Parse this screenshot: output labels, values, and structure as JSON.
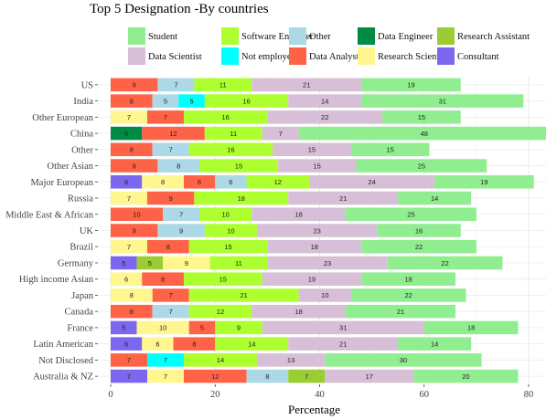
{
  "chart_data": {
    "type": "bar",
    "orientation": "horizontal",
    "stacked": true,
    "title": "Top 5 Designation -By countries",
    "xlabel": "Percentage",
    "ylabel": "",
    "xlim": [
      0,
      83
    ],
    "xticks": [
      0,
      20,
      40,
      60,
      80
    ],
    "grid": true,
    "legend_position": "top",
    "legend": [
      {
        "name": "Student",
        "color": "#90EE90"
      },
      {
        "name": "Software Engineer",
        "color": "#ADFF2F"
      },
      {
        "name": "Other",
        "color": "#ADD8E6"
      },
      {
        "name": "Data Engineer",
        "color": "#008B45"
      },
      {
        "name": "Research Assistant",
        "color": "#9ACD32"
      },
      {
        "name": "Data Scientist",
        "color": "#D8BFD8"
      },
      {
        "name": "Not employed",
        "color": "#00FFFF"
      },
      {
        "name": "Data Analyst",
        "color": "#FF6347"
      },
      {
        "name": "Research Scientist",
        "color": "#FFF68F"
      },
      {
        "name": "Consultant",
        "color": "#7B68EE"
      }
    ],
    "categories": [
      "US",
      "India",
      "Other European",
      "China",
      "Other",
      "Other Asian",
      "Major European",
      "Russia",
      "Middle East & African",
      "UK",
      "Brazil",
      "Germany",
      "High income Asian",
      "Japan",
      "Canada",
      "France",
      "Latin American",
      "Not Disclosed",
      "Australia & NZ"
    ],
    "bars": [
      {
        "segments": [
          {
            "s": "Data Analyst",
            "v": 9
          },
          {
            "s": "Other",
            "v": 7
          },
          {
            "s": "Software Engineer",
            "v": 11
          },
          {
            "s": "Data Scientist",
            "v": 21
          },
          {
            "s": "Student",
            "v": 19
          }
        ]
      },
      {
        "segments": [
          {
            "s": "Data Analyst",
            "v": 8
          },
          {
            "s": "Other",
            "v": 5
          },
          {
            "s": "Not employed",
            "v": 5
          },
          {
            "s": "Software Engineer",
            "v": 16
          },
          {
            "s": "Data Scientist",
            "v": 14
          },
          {
            "s": "Student",
            "v": 31
          }
        ]
      },
      {
        "segments": [
          {
            "s": "Research Scientist",
            "v": 7
          },
          {
            "s": "Data Analyst",
            "v": 7
          },
          {
            "s": "Software Engineer",
            "v": 16
          },
          {
            "s": "Data Scientist",
            "v": 22
          },
          {
            "s": "Student",
            "v": 15
          }
        ]
      },
      {
        "segments": [
          {
            "s": "Data Engineer",
            "v": 6
          },
          {
            "s": "Data Analyst",
            "v": 12
          },
          {
            "s": "Software Engineer",
            "v": 11
          },
          {
            "s": "Data Scientist",
            "v": 7
          },
          {
            "s": "Student",
            "v": 48
          }
        ]
      },
      {
        "segments": [
          {
            "s": "Data Analyst",
            "v": 8
          },
          {
            "s": "Other",
            "v": 7
          },
          {
            "s": "Software Engineer",
            "v": 16
          },
          {
            "s": "Data Scientist",
            "v": 15
          },
          {
            "s": "Student",
            "v": 15
          }
        ]
      },
      {
        "segments": [
          {
            "s": "Data Analyst",
            "v": 9
          },
          {
            "s": "Other",
            "v": 8
          },
          {
            "s": "Software Engineer",
            "v": 15
          },
          {
            "s": "Data Scientist",
            "v": 15
          },
          {
            "s": "Student",
            "v": 25
          }
        ]
      },
      {
        "segments": [
          {
            "s": "Consultant",
            "v": 6
          },
          {
            "s": "Research Scientist",
            "v": 8
          },
          {
            "s": "Data Analyst",
            "v": 6
          },
          {
            "s": "Other",
            "v": 6
          },
          {
            "s": "Software Engineer",
            "v": 12
          },
          {
            "s": "Data Scientist",
            "v": 24
          },
          {
            "s": "Student",
            "v": 19
          }
        ]
      },
      {
        "segments": [
          {
            "s": "Research Scientist",
            "v": 7
          },
          {
            "s": "Data Analyst",
            "v": 9
          },
          {
            "s": "Software Engineer",
            "v": 18
          },
          {
            "s": "Data Scientist",
            "v": 21
          },
          {
            "s": "Student",
            "v": 14
          }
        ]
      },
      {
        "segments": [
          {
            "s": "Data Analyst",
            "v": 10
          },
          {
            "s": "Other",
            "v": 7
          },
          {
            "s": "Software Engineer",
            "v": 10
          },
          {
            "s": "Data Scientist",
            "v": 18
          },
          {
            "s": "Student",
            "v": 25
          }
        ]
      },
      {
        "segments": [
          {
            "s": "Data Analyst",
            "v": 9
          },
          {
            "s": "Other",
            "v": 9
          },
          {
            "s": "Software Engineer",
            "v": 10
          },
          {
            "s": "Data Scientist",
            "v": 23
          },
          {
            "s": "Student",
            "v": 16
          }
        ]
      },
      {
        "segments": [
          {
            "s": "Research Scientist",
            "v": 7
          },
          {
            "s": "Data Analyst",
            "v": 8
          },
          {
            "s": "Software Engineer",
            "v": 15
          },
          {
            "s": "Data Scientist",
            "v": 18
          },
          {
            "s": "Student",
            "v": 22
          }
        ]
      },
      {
        "segments": [
          {
            "s": "Consultant",
            "v": 5
          },
          {
            "s": "Research Assistant",
            "v": 5
          },
          {
            "s": "Research Scientist",
            "v": 9
          },
          {
            "s": "Software Engineer",
            "v": 11
          },
          {
            "s": "Data Scientist",
            "v": 23
          },
          {
            "s": "Student",
            "v": 22
          }
        ]
      },
      {
        "segments": [
          {
            "s": "Research Scientist",
            "v": 6
          },
          {
            "s": "Data Analyst",
            "v": 8
          },
          {
            "s": "Software Engineer",
            "v": 15
          },
          {
            "s": "Data Scientist",
            "v": 19
          },
          {
            "s": "Student",
            "v": 18
          }
        ]
      },
      {
        "segments": [
          {
            "s": "Research Scientist",
            "v": 8
          },
          {
            "s": "Data Analyst",
            "v": 7
          },
          {
            "s": "Software Engineer",
            "v": 21
          },
          {
            "s": "Data Scientist",
            "v": 10
          },
          {
            "s": "Student",
            "v": 22
          }
        ]
      },
      {
        "segments": [
          {
            "s": "Data Analyst",
            "v": 8
          },
          {
            "s": "Other",
            "v": 7
          },
          {
            "s": "Software Engineer",
            "v": 12
          },
          {
            "s": "Data Scientist",
            "v": 18
          },
          {
            "s": "Student",
            "v": 21
          }
        ]
      },
      {
        "segments": [
          {
            "s": "Consultant",
            "v": 5
          },
          {
            "s": "Research Scientist",
            "v": 10
          },
          {
            "s": "Data Analyst",
            "v": 5
          },
          {
            "s": "Software Engineer",
            "v": 9
          },
          {
            "s": "Data Scientist",
            "v": 31
          },
          {
            "s": "Student",
            "v": 18
          }
        ]
      },
      {
        "segments": [
          {
            "s": "Consultant",
            "v": 6
          },
          {
            "s": "Research Scientist",
            "v": 6
          },
          {
            "s": "Data Analyst",
            "v": 8
          },
          {
            "s": "Software Engineer",
            "v": 14
          },
          {
            "s": "Data Scientist",
            "v": 21
          },
          {
            "s": "Student",
            "v": 14
          }
        ]
      },
      {
        "segments": [
          {
            "s": "Data Analyst",
            "v": 7
          },
          {
            "s": "Not employed",
            "v": 7
          },
          {
            "s": "Software Engineer",
            "v": 14
          },
          {
            "s": "Data Scientist",
            "v": 13
          },
          {
            "s": "Student",
            "v": 30
          }
        ]
      },
      {
        "segments": [
          {
            "s": "Consultant",
            "v": 7
          },
          {
            "s": "Research Scientist",
            "v": 7
          },
          {
            "s": "Data Analyst",
            "v": 12
          },
          {
            "s": "Other",
            "v": 8
          },
          {
            "s": "Research Assistant",
            "v": 7
          },
          {
            "s": "Data Scientist",
            "v": 17
          },
          {
            "s": "Student",
            "v": 20
          }
        ]
      }
    ]
  }
}
